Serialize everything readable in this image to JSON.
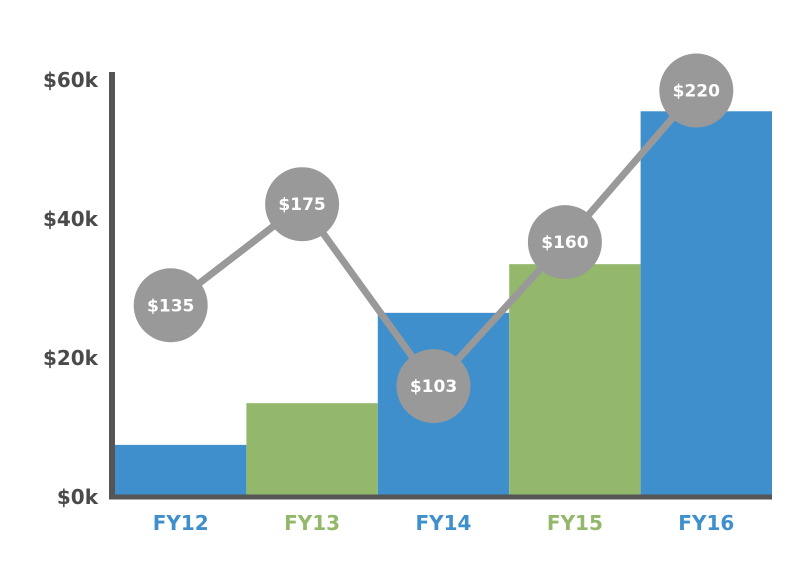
{
  "chart_data": {
    "type": "bar",
    "categories": [
      "FY12",
      "FY13",
      "FY14",
      "FY15",
      "FY16"
    ],
    "values": [
      7.5,
      13.5,
      26.5,
      33.5,
      55.5
    ],
    "ylim": [
      0,
      60
    ],
    "yticks": [
      "$0k",
      "$20k",
      "$40k",
      "$60k"
    ],
    "ytick_values": [
      0,
      20,
      40,
      60
    ],
    "line_series": {
      "values": [
        135,
        175,
        103,
        160,
        220
      ],
      "labels": [
        "$135",
        "$175",
        "$103",
        "$160",
        "$220"
      ],
      "ylim": [
        50,
        240
      ]
    },
    "bar_colors": [
      "#3f8fcd",
      "#94b86b",
      "#3f8fcd",
      "#94b86b",
      "#3f8fcd"
    ],
    "line_color": "#999999",
    "axis_color": "#555555",
    "grid": false,
    "legend": "none"
  }
}
